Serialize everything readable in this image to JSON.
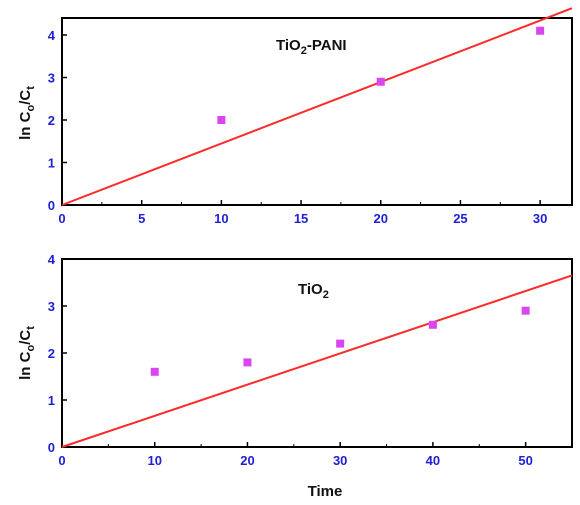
{
  "colors": {
    "marker": "#d946ef",
    "fit_line": "#ff2a2a",
    "tick_label": "#1f1fd6",
    "axis": "#000000"
  },
  "chart_data": [
    {
      "type": "scatter",
      "panel_label": {
        "base": "TiO",
        "sub": "2",
        "rest": "-PANI"
      },
      "ylabel": {
        "base": "ln C",
        "sub1": "o",
        "mid": "/C",
        "sub2": "t"
      },
      "xlabel": "",
      "xlim": [
        0,
        32
      ],
      "ylim": [
        0,
        4.4
      ],
      "xticks": [
        0,
        5,
        10,
        15,
        20,
        25,
        30
      ],
      "yticks": [
        0,
        1,
        2,
        3,
        4
      ],
      "series": [
        {
          "kind": "points",
          "x": [
            10,
            20,
            30
          ],
          "y": [
            2.0,
            2.9,
            4.1
          ]
        },
        {
          "kind": "fit",
          "x": [
            0,
            32
          ],
          "y": [
            0,
            4.63
          ]
        }
      ],
      "grid": false
    },
    {
      "type": "scatter",
      "panel_label": {
        "base": "TiO",
        "sub": "2",
        "rest": ""
      },
      "ylabel": {
        "base": "ln C",
        "sub1": "o",
        "mid": "/C",
        "sub2": "t"
      },
      "xlabel": "Time",
      "xlim": [
        0,
        55
      ],
      "ylim": [
        0,
        4
      ],
      "xticks": [
        0,
        10,
        20,
        30,
        40,
        50
      ],
      "yticks": [
        0,
        1,
        2,
        3,
        4
      ],
      "series": [
        {
          "kind": "points",
          "x": [
            10,
            20,
            30,
            40,
            50
          ],
          "y": [
            1.6,
            1.8,
            2.2,
            2.6,
            2.9
          ]
        },
        {
          "kind": "fit",
          "x": [
            0,
            55
          ],
          "y": [
            0,
            3.65
          ]
        }
      ],
      "grid": false
    }
  ]
}
